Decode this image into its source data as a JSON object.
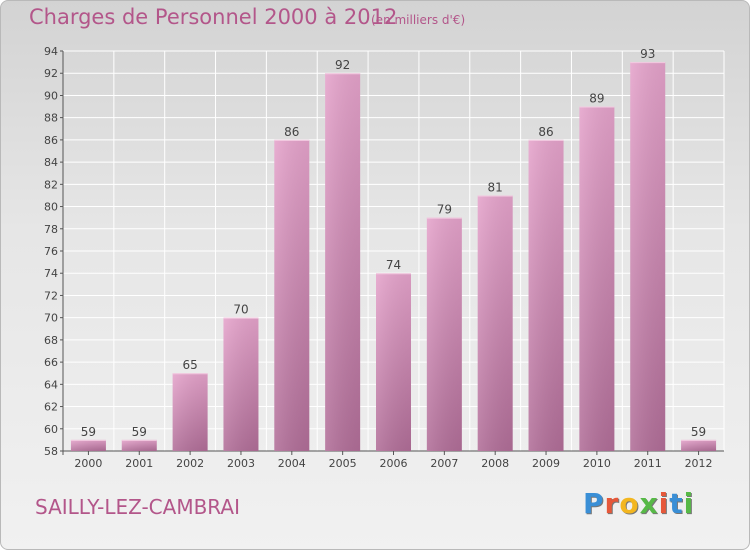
{
  "chart_data": {
    "type": "bar",
    "title": "Charges de Personnel 2000 à 2012",
    "subtitle": "(en milliers d'€)",
    "categories": [
      "2000",
      "2001",
      "2002",
      "2003",
      "2004",
      "2005",
      "2006",
      "2007",
      "2008",
      "2009",
      "2010",
      "2011",
      "2012"
    ],
    "values": [
      59,
      59,
      65,
      70,
      86,
      92,
      74,
      79,
      81,
      86,
      89,
      93,
      59
    ],
    "ylim": [
      58,
      94
    ],
    "yticks": [
      58,
      60,
      62,
      64,
      66,
      68,
      70,
      72,
      74,
      76,
      78,
      80,
      82,
      84,
      86,
      88,
      90,
      92,
      94
    ],
    "grid": true,
    "bar_color": "#d890bd",
    "axis_text_color": "#444444"
  },
  "commune": "SAILLY-LEZ-CAMBRAI",
  "logo": {
    "letters": [
      "P",
      "r",
      "o",
      "x",
      "i",
      "t",
      "i"
    ],
    "colors": [
      "#3a8fd6",
      "#e6583a",
      "#f3b61f",
      "#57b947",
      "#e6583a",
      "#3a8fd6",
      "#57b947"
    ]
  }
}
